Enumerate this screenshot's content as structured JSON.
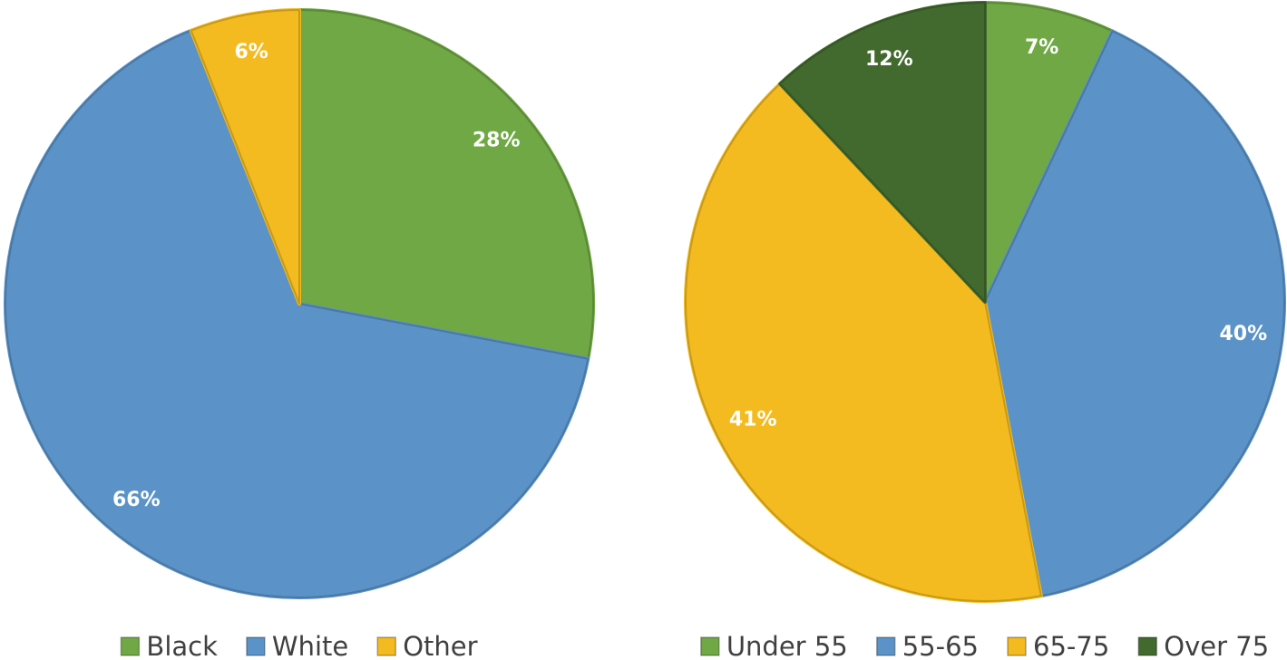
{
  "chart_data": [
    {
      "type": "pie",
      "categories": [
        "Black",
        "White",
        "Other"
      ],
      "values": [
        28,
        66,
        6
      ],
      "value_labels": [
        "28%",
        "66%",
        "6%"
      ],
      "colors": [
        "#70a845",
        "#5b93c8",
        "#f3bb1f"
      ],
      "legend": "bottom"
    },
    {
      "type": "pie",
      "categories": [
        "Under 55",
        "55-65",
        "65-75",
        "Over 75"
      ],
      "values": [
        7,
        40,
        41,
        12
      ],
      "value_labels": [
        "7%",
        "40%",
        "41%",
        "12%"
      ],
      "colors": [
        "#70a845",
        "#5b93c8",
        "#f3bb1f",
        "#426a2e"
      ],
      "legend": "bottom"
    }
  ]
}
